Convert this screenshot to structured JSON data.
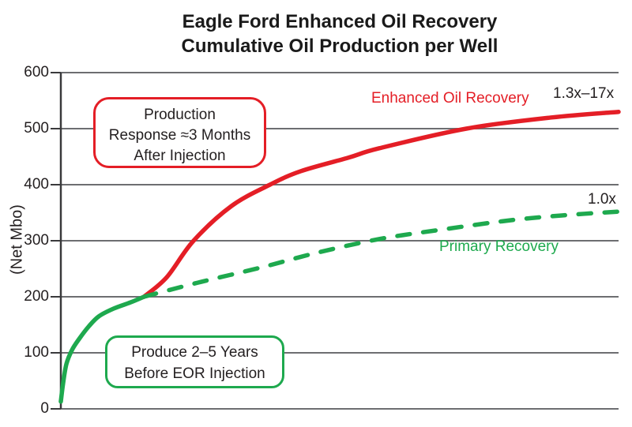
{
  "title": {
    "line1": "Eagle Ford Enhanced Oil Recovery",
    "line2": "Cumulative Oil Production per Well"
  },
  "ylabel": "(Net Mbo)",
  "annotations": {
    "eor_label": "Enhanced Oil Recovery",
    "eor_multiplier": "1.3x–17x",
    "primary_label": "Primary Recovery",
    "primary_multiplier": "1.0x",
    "callout_production": {
      "lines": [
        "Production",
        "Response ≈3 Months",
        "After Injection"
      ]
    },
    "callout_produce": {
      "lines": [
        "Produce 2–5 Years",
        "Before EOR Injection"
      ]
    }
  },
  "colors": {
    "eor_red": "#e41e26",
    "primary_green": "#1ea94e",
    "grid": "#6d6e71",
    "axis": "#3a3a3c",
    "text": "#231f20"
  },
  "chart_data": {
    "type": "line",
    "title": "Eagle Ford Enhanced Oil Recovery — Cumulative Oil Production per Well",
    "xlabel": "",
    "ylabel": "(Net Mbo)",
    "ylim": [
      0,
      600
    ],
    "yticks": [
      0,
      100,
      200,
      300,
      400,
      500,
      600
    ],
    "grid": true,
    "x_units": "normalized 0–1 (x axis unlabeled in figure)",
    "series": [
      {
        "id": "primary-before-eor",
        "name": "Primary production before EOR injection (produce 2–5 years)",
        "style": "solid",
        "color": "#1ea94e",
        "points": [
          [
            0,
            13
          ],
          [
            0.004,
            45
          ],
          [
            0.01,
            80
          ],
          [
            0.02,
            105
          ],
          [
            0.033,
            125
          ],
          [
            0.05,
            147
          ],
          [
            0.068,
            165
          ],
          [
            0.095,
            179
          ],
          [
            0.125,
            190
          ],
          [
            0.149,
            200
          ]
        ]
      },
      {
        "id": "enhanced-oil-recovery",
        "name": "Enhanced Oil Recovery",
        "style": "solid",
        "color": "#e41e26",
        "end_value_mbo": 530,
        "points": [
          [
            0.149,
            200
          ],
          [
            0.19,
            235
          ],
          [
            0.238,
            300
          ],
          [
            0.306,
            362
          ],
          [
            0.375,
            400
          ],
          [
            0.43,
            424
          ],
          [
            0.515,
            448
          ],
          [
            0.571,
            465
          ],
          [
            0.727,
            500
          ],
          [
            0.88,
            520
          ],
          [
            1,
            530
          ]
        ]
      },
      {
        "id": "primary-recovery",
        "name": "Primary Recovery",
        "style": "dashed",
        "color": "#1ea94e",
        "end_value_mbo": 352,
        "points": [
          [
            0.149,
            200
          ],
          [
            0.245,
            225
          ],
          [
            0.358,
            252
          ],
          [
            0.457,
            278
          ],
          [
            0.571,
            303
          ],
          [
            0.684,
            320
          ],
          [
            0.81,
            337
          ],
          [
            0.91,
            346
          ],
          [
            1,
            352
          ]
        ]
      }
    ]
  }
}
